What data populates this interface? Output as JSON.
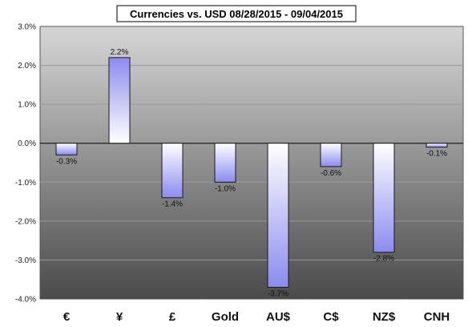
{
  "chart_data": {
    "type": "bar",
    "title": "Currencies vs. USD 08/28/2015 - 09/04/2015",
    "categories": [
      "€",
      "¥",
      "£",
      "Gold",
      "AU$",
      "C$",
      "NZ$",
      "CNH"
    ],
    "values": [
      -0.3,
      2.2,
      -1.4,
      -1.0,
      -3.7,
      -0.6,
      -2.8,
      -0.1
    ],
    "data_labels": [
      "-0.3%",
      "2.2%",
      "-1.4%",
      "-1.0%",
      "-3.7%",
      "-0.6%",
      "-2.8%",
      "-0.1%"
    ],
    "y_ticks": [
      3.0,
      2.0,
      1.0,
      0.0,
      -1.0,
      -2.0,
      -3.0,
      -4.0
    ],
    "y_tick_labels": [
      "3.0%",
      "2.0%",
      "1.0%",
      "0.0%",
      "-1.0%",
      "-2.0%",
      "-3.0%",
      "-4.0%"
    ],
    "ylim": [
      -4.0,
      3.0
    ],
    "xlabel": "",
    "ylabel": "",
    "grid": true,
    "legend": "none",
    "colors": {
      "bar_edge": "#1a1a1a",
      "bar_fill_dark": "#8b8bf0",
      "bar_fill_light": "#ffffff",
      "plot_top": "#d6d6d6",
      "plot_bottom": "#4a4a4a",
      "gridline": "#9a9a9a"
    }
  }
}
